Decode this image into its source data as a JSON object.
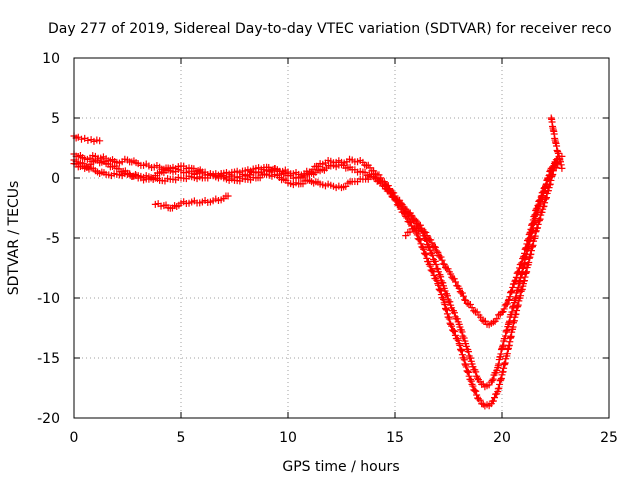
{
  "chart_data": {
    "type": "scatter",
    "title": "Day 277 of 2019, Sidereal Day-to-day VTEC variation (SDTVAR) for receiver reco",
    "xlabel": "GPS time / hours",
    "ylabel": "SDTVAR / TECUs",
    "xlim": [
      0,
      25
    ],
    "ylim": [
      -20,
      10
    ],
    "xticks": [
      0,
      5,
      10,
      15,
      20,
      25
    ],
    "yticks": [
      -20,
      -15,
      -10,
      -5,
      0,
      5,
      10
    ],
    "grid": true,
    "marker": "+",
    "color": "#ff0000",
    "series": [
      {
        "name": "track-1",
        "points": [
          [
            0.0,
            3.5
          ],
          [
            0.2,
            3.4
          ],
          [
            0.5,
            3.3
          ],
          [
            0.8,
            3.2
          ],
          [
            1.2,
            3.1
          ]
        ]
      },
      {
        "name": "track-2",
        "points": [
          [
            0.0,
            2.0
          ],
          [
            0.5,
            1.6
          ],
          [
            1.0,
            1.8
          ],
          [
            1.5,
            1.6
          ],
          [
            2.0,
            1.3
          ],
          [
            2.5,
            1.5
          ],
          [
            3.0,
            1.2
          ],
          [
            3.5,
            1.0
          ],
          [
            4.0,
            0.9
          ],
          [
            4.5,
            0.6
          ],
          [
            5.0,
            0.6
          ],
          [
            5.5,
            0.4
          ],
          [
            6.0,
            0.4
          ],
          [
            6.5,
            0.2
          ],
          [
            7.0,
            0.2
          ],
          [
            7.5,
            0.1
          ],
          [
            8.0,
            0.2
          ],
          [
            8.5,
            0.5
          ],
          [
            9.0,
            0.6
          ],
          [
            9.5,
            0.7
          ],
          [
            10.0,
            0.5
          ],
          [
            10.5,
            0.3
          ],
          [
            11.0,
            0.5
          ],
          [
            11.5,
            1.2
          ],
          [
            12.0,
            1.4
          ],
          [
            12.5,
            1.3
          ],
          [
            13.0,
            1.5
          ],
          [
            13.5,
            1.3
          ],
          [
            14.0,
            0.6
          ],
          [
            14.5,
            -0.3
          ],
          [
            15.0,
            -1.5
          ],
          [
            15.5,
            -2.6
          ],
          [
            16.0,
            -3.6
          ],
          [
            16.5,
            -4.8
          ],
          [
            17.0,
            -6.2
          ],
          [
            17.3,
            -7.2
          ],
          [
            17.6,
            -8.0
          ],
          [
            18.0,
            -9.2
          ],
          [
            18.3,
            -10.2
          ],
          [
            18.6,
            -10.8
          ],
          [
            19.0,
            -11.6
          ],
          [
            19.3,
            -12.2
          ],
          [
            19.6,
            -12.0
          ],
          [
            20.0,
            -11.2
          ],
          [
            20.3,
            -10.2
          ],
          [
            20.6,
            -8.6
          ],
          [
            21.0,
            -6.6
          ],
          [
            21.3,
            -4.6
          ],
          [
            21.6,
            -2.6
          ],
          [
            22.0,
            -0.8
          ],
          [
            22.3,
            0.6
          ],
          [
            22.6,
            1.6
          ],
          [
            22.8,
            1.8
          ]
        ]
      },
      {
        "name": "track-3",
        "points": [
          [
            0.0,
            1.5
          ],
          [
            0.5,
            1.0
          ],
          [
            1.0,
            0.6
          ],
          [
            1.5,
            0.3
          ],
          [
            2.0,
            0.3
          ],
          [
            2.5,
            0.3
          ],
          [
            3.0,
            0.2
          ],
          [
            3.5,
            0.1
          ],
          [
            4.0,
            -0.2
          ],
          [
            4.5,
            -0.1
          ],
          [
            5.0,
            0.0
          ],
          [
            5.5,
            0.1
          ],
          [
            6.0,
            0.0
          ],
          [
            6.5,
            0.2
          ],
          [
            7.0,
            0.0
          ],
          [
            7.5,
            -0.2
          ],
          [
            8.0,
            -0.1
          ],
          [
            8.5,
            0.0
          ],
          [
            9.0,
            0.3
          ],
          [
            9.5,
            0.2
          ],
          [
            10.0,
            -0.4
          ],
          [
            10.5,
            -0.5
          ],
          [
            11.0,
            -0.2
          ],
          [
            11.5,
            -0.5
          ],
          [
            12.0,
            -0.6
          ],
          [
            12.5,
            -0.8
          ],
          [
            13.0,
            -0.3
          ],
          [
            13.5,
            -0.1
          ],
          [
            14.0,
            0.1
          ],
          [
            14.5,
            -0.7
          ],
          [
            15.0,
            -1.7
          ],
          [
            15.5,
            -2.6
          ],
          [
            16.0,
            -3.8
          ],
          [
            16.3,
            -4.6
          ],
          [
            16.6,
            -5.8
          ],
          [
            17.0,
            -7.6
          ],
          [
            17.3,
            -9.2
          ],
          [
            17.6,
            -10.6
          ],
          [
            18.0,
            -12.2
          ],
          [
            18.3,
            -13.8
          ],
          [
            18.6,
            -15.5
          ],
          [
            18.9,
            -16.8
          ],
          [
            19.2,
            -17.4
          ],
          [
            19.5,
            -17.0
          ],
          [
            19.8,
            -15.8
          ],
          [
            20.0,
            -14.2
          ],
          [
            20.3,
            -12.2
          ],
          [
            20.6,
            -10.2
          ],
          [
            21.0,
            -7.4
          ],
          [
            21.3,
            -5.2
          ],
          [
            21.6,
            -3.0
          ],
          [
            22.0,
            -0.8
          ],
          [
            22.3,
            0.8
          ],
          [
            22.6,
            1.6
          ]
        ]
      },
      {
        "name": "track-4",
        "points": [
          [
            0.0,
            1.2
          ],
          [
            0.5,
            0.8
          ],
          [
            1.0,
            1.5
          ],
          [
            1.5,
            1.2
          ],
          [
            2.0,
            0.8
          ],
          [
            2.5,
            0.4
          ],
          [
            3.0,
            0.0
          ],
          [
            3.5,
            -0.1
          ],
          [
            4.0,
            0.4
          ],
          [
            4.5,
            0.8
          ],
          [
            5.0,
            1.0
          ],
          [
            5.5,
            0.8
          ],
          [
            6.0,
            0.5
          ],
          [
            6.5,
            0.3
          ],
          [
            7.0,
            0.4
          ],
          [
            7.5,
            0.5
          ],
          [
            8.0,
            0.6
          ],
          [
            8.5,
            0.8
          ],
          [
            9.0,
            0.9
          ],
          [
            9.5,
            0.6
          ],
          [
            10.0,
            0.2
          ],
          [
            10.5,
            0.0
          ],
          [
            11.0,
            0.3
          ],
          [
            11.5,
            0.6
          ],
          [
            12.0,
            1.0
          ],
          [
            12.5,
            1.1
          ],
          [
            13.0,
            0.7
          ],
          [
            13.5,
            0.5
          ],
          [
            14.0,
            0.1
          ],
          [
            14.5,
            -0.5
          ],
          [
            15.0,
            -1.8
          ],
          [
            15.5,
            -3.2
          ],
          [
            16.0,
            -4.6
          ],
          [
            16.3,
            -5.8
          ],
          [
            16.6,
            -7.2
          ],
          [
            17.0,
            -8.8
          ],
          [
            17.3,
            -10.4
          ],
          [
            17.6,
            -12.2
          ],
          [
            18.0,
            -13.8
          ],
          [
            18.3,
            -15.6
          ],
          [
            18.6,
            -17.2
          ],
          [
            18.9,
            -18.4
          ],
          [
            19.2,
            -19.0
          ],
          [
            19.5,
            -18.8
          ],
          [
            19.8,
            -17.8
          ],
          [
            20.0,
            -16.4
          ],
          [
            20.3,
            -14.2
          ],
          [
            20.6,
            -11.6
          ],
          [
            21.0,
            -8.8
          ],
          [
            21.3,
            -6.6
          ],
          [
            21.6,
            -4.4
          ],
          [
            21.9,
            -2.6
          ],
          [
            22.2,
            -0.8
          ],
          [
            22.4,
            0.6
          ],
          [
            22.6,
            1.2
          ]
        ]
      },
      {
        "name": "track-5",
        "points": [
          [
            3.8,
            -2.2
          ],
          [
            4.2,
            -2.3
          ],
          [
            4.6,
            -2.5
          ],
          [
            5.0,
            -2.1
          ],
          [
            5.5,
            -2.0
          ],
          [
            6.0,
            -2.0
          ],
          [
            6.5,
            -1.9
          ],
          [
            7.0,
            -1.7
          ],
          [
            7.2,
            -1.5
          ]
        ]
      },
      {
        "name": "track-6",
        "points": [
          [
            15.5,
            -4.8
          ],
          [
            15.7,
            -4.5
          ],
          [
            15.9,
            -4.2
          ],
          [
            16.1,
            -4.4
          ]
        ]
      },
      {
        "name": "track-7",
        "points": [
          [
            22.3,
            5.0
          ],
          [
            22.4,
            4.0
          ],
          [
            22.5,
            3.0
          ],
          [
            22.6,
            2.2
          ],
          [
            22.7,
            1.5
          ],
          [
            22.8,
            0.8
          ]
        ]
      }
    ]
  }
}
